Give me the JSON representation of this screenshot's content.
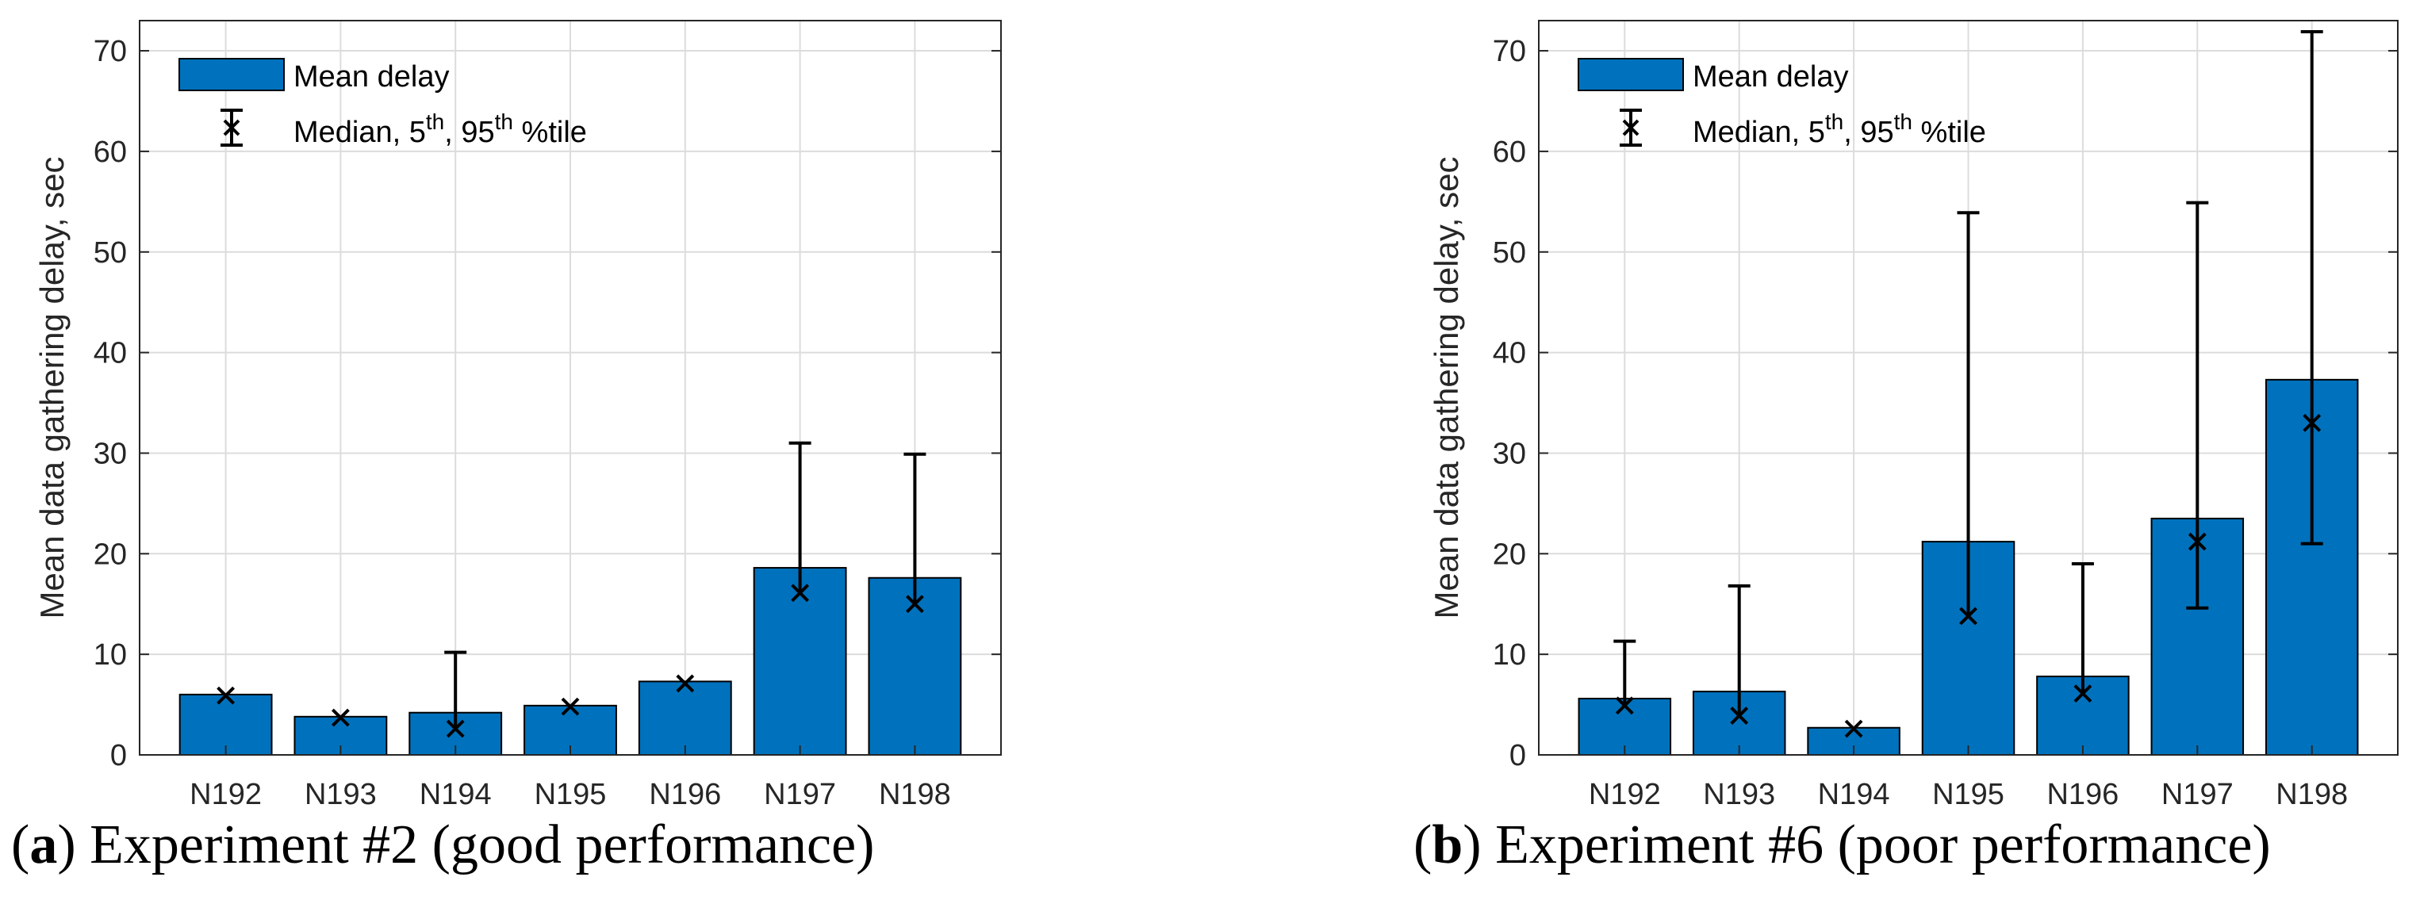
{
  "colors": {
    "bar": "#0072BD",
    "grid": "#dcdcdc",
    "axis": "#262626",
    "error": "#000000"
  },
  "chart_data": [
    {
      "type": "bar",
      "caption_letter": "a",
      "caption_open": "(",
      "caption_close": ")",
      "caption": "Experiment #2 (good performance)",
      "ylabel": "Mean data gathering delay, sec",
      "ylim": [
        0,
        73
      ],
      "yticks": [
        0,
        10,
        20,
        30,
        40,
        50,
        60,
        70
      ],
      "grid": true,
      "legend_position": "top-left",
      "legend": {
        "bar_label": "Mean delay",
        "marker_label_base": "Median, 5",
        "marker_label_sup1": "th",
        "marker_label_mid": ", 95",
        "marker_label_sup2": "th",
        "marker_label_end": " %tile"
      },
      "categories": [
        "N192",
        "N193",
        "N194",
        "N195",
        "N196",
        "N197",
        "N198"
      ],
      "series": [
        {
          "name": "Mean delay",
          "values": [
            6.0,
            3.8,
            4.2,
            4.9,
            7.3,
            18.6,
            17.6
          ]
        },
        {
          "name": "Median",
          "values": [
            5.9,
            3.7,
            2.6,
            4.8,
            7.1,
            16.1,
            15.0
          ]
        },
        {
          "name": "5th percentile",
          "values": [
            5.9,
            3.7,
            2.6,
            4.8,
            7.1,
            16.1,
            15.0
          ]
        },
        {
          "name": "95th percentile",
          "values": [
            5.9,
            3.7,
            10.2,
            4.8,
            7.1,
            31.0,
            29.9
          ]
        }
      ]
    },
    {
      "type": "bar",
      "caption_letter": "b",
      "caption_open": "(",
      "caption_close": ")",
      "caption": "Experiment #6 (poor performance)",
      "ylabel": "Mean data gathering delay, sec",
      "ylim": [
        0,
        73
      ],
      "yticks": [
        0,
        10,
        20,
        30,
        40,
        50,
        60,
        70
      ],
      "grid": true,
      "legend_position": "top-left",
      "legend": {
        "bar_label": "Mean delay",
        "marker_label_base": "Median, 5",
        "marker_label_sup1": "th",
        "marker_label_mid": ", 95",
        "marker_label_sup2": "th",
        "marker_label_end": " %tile"
      },
      "categories": [
        "N192",
        "N193",
        "N194",
        "N195",
        "N196",
        "N197",
        "N198"
      ],
      "series": [
        {
          "name": "Mean delay",
          "values": [
            5.6,
            6.3,
            2.7,
            21.2,
            7.8,
            23.5,
            37.3
          ]
        },
        {
          "name": "Median",
          "values": [
            4.9,
            3.9,
            2.6,
            13.8,
            6.1,
            21.2,
            33.0
          ]
        },
        {
          "name": "5th percentile",
          "values": [
            4.9,
            3.9,
            2.6,
            13.8,
            6.1,
            14.6,
            21.0
          ]
        },
        {
          "name": "95th percentile",
          "values": [
            11.3,
            16.8,
            2.6,
            53.9,
            19.0,
            54.9,
            71.9
          ]
        }
      ]
    }
  ]
}
